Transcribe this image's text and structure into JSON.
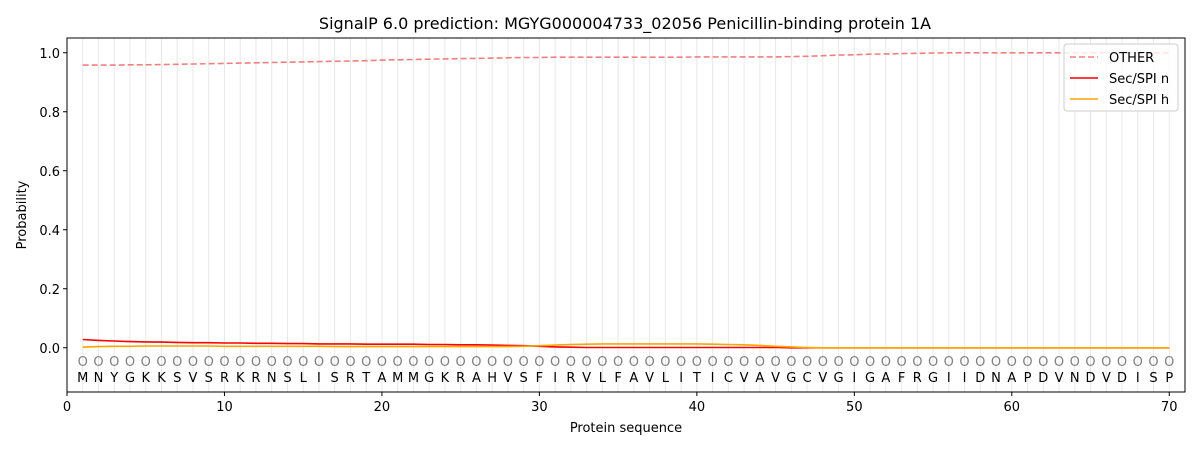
{
  "chart_data": {
    "type": "line",
    "title": "SignalP 6.0 prediction: MGYG000004733_02056 Penicillin-binding protein 1A",
    "xlabel": "Protein sequence",
    "ylabel": "Probability",
    "xlim": [
      0,
      71
    ],
    "ylim": [
      -0.15,
      1.05
    ],
    "xticks": [
      0,
      10,
      20,
      30,
      40,
      50,
      60,
      70
    ],
    "yticks": [
      0.0,
      0.2,
      0.4,
      0.6,
      0.8,
      1.0
    ],
    "grid": "vertical per residue",
    "legend": "top-right",
    "sequence": [
      "M",
      "N",
      "Y",
      "G",
      "K",
      "K",
      "S",
      "V",
      "S",
      "R",
      "K",
      "R",
      "N",
      "S",
      "L",
      "I",
      "S",
      "R",
      "T",
      "A",
      "M",
      "M",
      "G",
      "K",
      "R",
      "A",
      "H",
      "V",
      "S",
      "F",
      "I",
      "R",
      "V",
      "L",
      "F",
      "A",
      "V",
      "L",
      "I",
      "T",
      "I",
      "C",
      "V",
      "A",
      "V",
      "G",
      "C",
      "V",
      "G",
      "I",
      "G",
      "A",
      "F",
      "R",
      "G",
      "I",
      "I",
      "D",
      "N",
      "A",
      "P",
      "D",
      "V",
      "N",
      "D",
      "V",
      "D",
      "I",
      "S",
      "P"
    ],
    "labels": [
      "O",
      "O",
      "O",
      "O",
      "O",
      "O",
      "O",
      "O",
      "O",
      "O",
      "O",
      "O",
      "O",
      "O",
      "O",
      "O",
      "O",
      "O",
      "O",
      "O",
      "O",
      "O",
      "O",
      "O",
      "O",
      "O",
      "O",
      "O",
      "O",
      "O",
      "O",
      "O",
      "O",
      "O",
      "O",
      "O",
      "O",
      "O",
      "O",
      "O",
      "O",
      "O",
      "O",
      "O",
      "O",
      "O",
      "O",
      "O",
      "O",
      "O",
      "O",
      "O",
      "O",
      "O",
      "O",
      "O",
      "O",
      "O",
      "O",
      "O",
      "O",
      "O",
      "O",
      "O",
      "O",
      "O",
      "O",
      "O",
      "O",
      "O"
    ],
    "series": [
      {
        "name": "OTHER",
        "color": "#f08080",
        "dash": true,
        "values": [
          0.958,
          0.958,
          0.958,
          0.959,
          0.959,
          0.96,
          0.961,
          0.962,
          0.963,
          0.964,
          0.965,
          0.966,
          0.967,
          0.968,
          0.969,
          0.97,
          0.971,
          0.972,
          0.973,
          0.975,
          0.976,
          0.977,
          0.978,
          0.979,
          0.98,
          0.981,
          0.982,
          0.983,
          0.984,
          0.984,
          0.985,
          0.985,
          0.985,
          0.985,
          0.985,
          0.985,
          0.985,
          0.985,
          0.985,
          0.986,
          0.986,
          0.986,
          0.986,
          0.986,
          0.986,
          0.987,
          0.988,
          0.99,
          0.992,
          0.993,
          0.995,
          0.996,
          0.997,
          0.998,
          0.999,
          1.0,
          1.0,
          1.0,
          1.0,
          1.0,
          1.0,
          1.0,
          1.0,
          1.0,
          1.0,
          1.0,
          1.0,
          1.0,
          1.0,
          1.0
        ]
      },
      {
        "name": "Sec/SPI n",
        "color": "#ff0000",
        "dash": false,
        "values": [
          0.028,
          0.025,
          0.023,
          0.021,
          0.02,
          0.019,
          0.018,
          0.017,
          0.017,
          0.016,
          0.016,
          0.015,
          0.015,
          0.014,
          0.014,
          0.013,
          0.013,
          0.013,
          0.012,
          0.012,
          0.012,
          0.012,
          0.011,
          0.011,
          0.01,
          0.01,
          0.009,
          0.008,
          0.007,
          0.005,
          0.003,
          0.002,
          0.001,
          0.001,
          0.001,
          0.001,
          0.001,
          0.001,
          0.001,
          0.001,
          0.001,
          0.001,
          0.001,
          0.001,
          0.001,
          0,
          0,
          0,
          0,
          0,
          0,
          0,
          0,
          0,
          0,
          0,
          0,
          0,
          0,
          0,
          0,
          0,
          0,
          0,
          0,
          0,
          0,
          0,
          0,
          0
        ]
      },
      {
        "name": "Sec/SPI h",
        "color": "#ffa500",
        "dash": false,
        "values": [
          0.002,
          0.004,
          0.005,
          0.005,
          0.006,
          0.006,
          0.006,
          0.006,
          0.006,
          0.005,
          0.005,
          0.005,
          0.005,
          0.005,
          0.005,
          0.005,
          0.004,
          0.004,
          0.004,
          0.004,
          0.004,
          0.004,
          0.004,
          0.004,
          0.004,
          0.004,
          0.004,
          0.004,
          0.005,
          0.007,
          0.009,
          0.011,
          0.012,
          0.013,
          0.013,
          0.013,
          0.013,
          0.013,
          0.013,
          0.013,
          0.012,
          0.011,
          0.01,
          0.008,
          0.005,
          0.003,
          0.001,
          0,
          0,
          0,
          0,
          0,
          0,
          0,
          0,
          0,
          0,
          0,
          0,
          0,
          0,
          0,
          0,
          0,
          0,
          0,
          0,
          0,
          0,
          0
        ]
      }
    ]
  }
}
